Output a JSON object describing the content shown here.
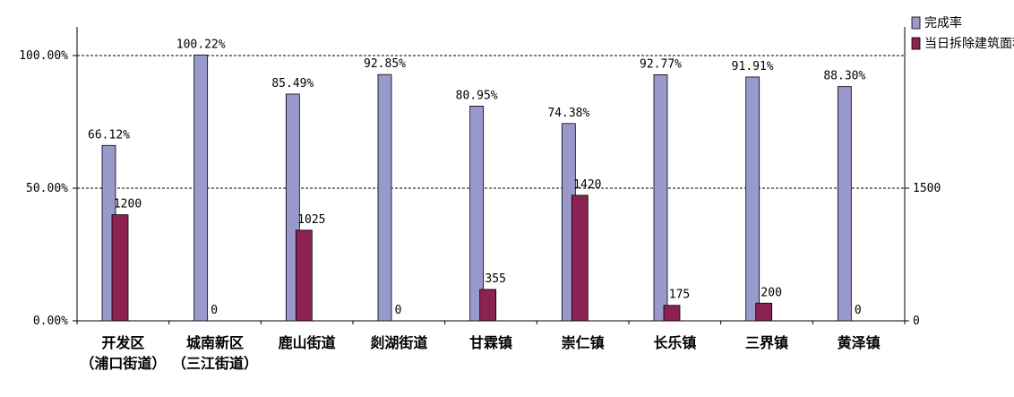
{
  "chart_data": {
    "type": "bar",
    "categories": [
      [
        "开发区",
        "（浦口街道）"
      ],
      [
        "城南新区",
        "（三江街道）"
      ],
      [
        "鹿山街道"
      ],
      [
        "剡湖街道"
      ],
      [
        "甘霖镇"
      ],
      [
        "崇仁镇"
      ],
      [
        "长乐镇"
      ],
      [
        "三界镇"
      ],
      [
        "黄泽镇"
      ]
    ],
    "series": [
      {
        "name": "完成率",
        "axis": "left",
        "color": "#9999cc",
        "values": [
          66.12,
          100.22,
          85.49,
          92.85,
          80.95,
          74.38,
          92.77,
          91.91,
          88.3
        ],
        "labels": [
          "66.12%",
          "100.22%",
          "85.49%",
          "92.85%",
          "80.95%",
          "74.38%",
          "92.77%",
          "91.91%",
          "88.30%"
        ]
      },
      {
        "name": "当日拆除建筑面积",
        "axis": "right",
        "color": "#8b2252",
        "values": [
          1200,
          0,
          1025,
          0,
          355,
          1420,
          175,
          200,
          0
        ],
        "labels": [
          "1200",
          "0",
          "1025",
          "0",
          "355",
          "1420",
          "175",
          "200",
          "0"
        ]
      }
    ],
    "y_left": {
      "lim": [
        0,
        100
      ],
      "ticks": [
        0,
        50,
        100
      ],
      "tick_labels": [
        "0.00%",
        "50.00%",
        "100.00%"
      ]
    },
    "y_right": {
      "lim": [
        0,
        3000
      ],
      "ticks": [
        0,
        1500
      ],
      "tick_labels": [
        "0",
        "1500"
      ]
    },
    "reference_lines": [
      50,
      100
    ],
    "legend_position": "top-right"
  }
}
